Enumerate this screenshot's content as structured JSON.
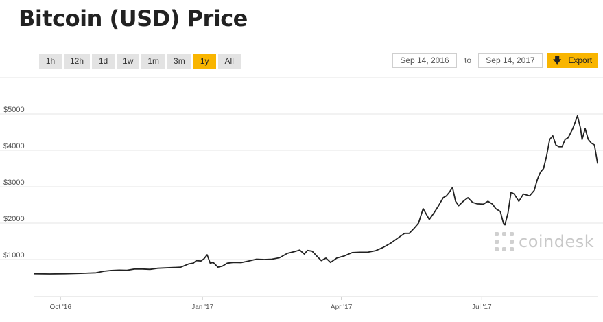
{
  "header": {
    "title": "Bitcoin (USD) Price"
  },
  "range_buttons": [
    {
      "label": "1h",
      "active": false
    },
    {
      "label": "12h",
      "active": false
    },
    {
      "label": "1d",
      "active": false
    },
    {
      "label": "1w",
      "active": false
    },
    {
      "label": "1m",
      "active": false
    },
    {
      "label": "3m",
      "active": false
    },
    {
      "label": "1y",
      "active": true
    },
    {
      "label": "All",
      "active": false
    }
  ],
  "date_range": {
    "from": "Sep 14, 2016",
    "to_label": "to",
    "to": "Sep 14, 2017"
  },
  "export": {
    "label": "Export",
    "icon": "arrow-down-icon"
  },
  "logo": {
    "text": "coindesk",
    "icon": "coindesk-logo-icon"
  },
  "colors": {
    "accent": "#f9b500",
    "line": "#222222",
    "grid": "#e6e6e6",
    "button": "#e3e3e3"
  },
  "chart_data": {
    "type": "line",
    "title": "Bitcoin (USD) Price",
    "xlabel": "",
    "ylabel": "",
    "ylim": [
      0,
      5000
    ],
    "xlim": [
      "2016-09-14",
      "2017-09-14"
    ],
    "y_ticks": [
      {
        "value": 1000,
        "label": "$1000"
      },
      {
        "value": 2000,
        "label": "$2000"
      },
      {
        "value": 3000,
        "label": "$3000"
      },
      {
        "value": 4000,
        "label": "$4000"
      },
      {
        "value": 5000,
        "label": "$5000"
      }
    ],
    "x_ticks": [
      {
        "date": "2016-10-01",
        "label": "Oct '16"
      },
      {
        "date": "2017-01-01",
        "label": "Jan '17"
      },
      {
        "date": "2017-04-01",
        "label": "Apr '17"
      },
      {
        "date": "2017-07-01",
        "label": "Jul '17"
      }
    ],
    "grid": true,
    "legend": "none",
    "series": [
      {
        "values": [
          {
            "x": "2016-09-14",
            "y": 610
          },
          {
            "x": "2016-09-24",
            "y": 604
          },
          {
            "x": "2016-10-04",
            "y": 610
          },
          {
            "x": "2016-10-14",
            "y": 620
          },
          {
            "x": "2016-10-24",
            "y": 635
          },
          {
            "x": "2016-10-29",
            "y": 680
          },
          {
            "x": "2016-11-03",
            "y": 700
          },
          {
            "x": "2016-11-08",
            "y": 710
          },
          {
            "x": "2016-11-13",
            "y": 705
          },
          {
            "x": "2016-11-18",
            "y": 740
          },
          {
            "x": "2016-11-23",
            "y": 740
          },
          {
            "x": "2016-11-28",
            "y": 730
          },
          {
            "x": "2016-12-03",
            "y": 760
          },
          {
            "x": "2016-12-08",
            "y": 770
          },
          {
            "x": "2016-12-13",
            "y": 780
          },
          {
            "x": "2016-12-18",
            "y": 790
          },
          {
            "x": "2016-12-23",
            "y": 880
          },
          {
            "x": "2016-12-26",
            "y": 900
          },
          {
            "x": "2016-12-28",
            "y": 970
          },
          {
            "x": "2016-12-31",
            "y": 960
          },
          {
            "x": "2017-01-02",
            "y": 1020
          },
          {
            "x": "2017-01-04",
            "y": 1130
          },
          {
            "x": "2017-01-06",
            "y": 900
          },
          {
            "x": "2017-01-08",
            "y": 920
          },
          {
            "x": "2017-01-11",
            "y": 790
          },
          {
            "x": "2017-01-14",
            "y": 820
          },
          {
            "x": "2017-01-17",
            "y": 900
          },
          {
            "x": "2017-01-21",
            "y": 920
          },
          {
            "x": "2017-01-26",
            "y": 915
          },
          {
            "x": "2017-01-31",
            "y": 960
          },
          {
            "x": "2017-02-05",
            "y": 1010
          },
          {
            "x": "2017-02-10",
            "y": 1000
          },
          {
            "x": "2017-02-15",
            "y": 1010
          },
          {
            "x": "2017-02-20",
            "y": 1050
          },
          {
            "x": "2017-02-25",
            "y": 1170
          },
          {
            "x": "2017-03-02",
            "y": 1220
          },
          {
            "x": "2017-03-05",
            "y": 1260
          },
          {
            "x": "2017-03-08",
            "y": 1150
          },
          {
            "x": "2017-03-10",
            "y": 1250
          },
          {
            "x": "2017-03-13",
            "y": 1230
          },
          {
            "x": "2017-03-16",
            "y": 1100
          },
          {
            "x": "2017-03-19",
            "y": 970
          },
          {
            "x": "2017-03-22",
            "y": 1040
          },
          {
            "x": "2017-03-25",
            "y": 920
          },
          {
            "x": "2017-03-29",
            "y": 1040
          },
          {
            "x": "2017-04-03",
            "y": 1100
          },
          {
            "x": "2017-04-08",
            "y": 1190
          },
          {
            "x": "2017-04-13",
            "y": 1200
          },
          {
            "x": "2017-04-18",
            "y": 1200
          },
          {
            "x": "2017-04-23",
            "y": 1240
          },
          {
            "x": "2017-04-28",
            "y": 1330
          },
          {
            "x": "2017-05-03",
            "y": 1450
          },
          {
            "x": "2017-05-08",
            "y": 1600
          },
          {
            "x": "2017-05-12",
            "y": 1720
          },
          {
            "x": "2017-05-15",
            "y": 1720
          },
          {
            "x": "2017-05-18",
            "y": 1850
          },
          {
            "x": "2017-05-21",
            "y": 2000
          },
          {
            "x": "2017-05-24",
            "y": 2400
          },
          {
            "x": "2017-05-26",
            "y": 2250
          },
          {
            "x": "2017-05-28",
            "y": 2100
          },
          {
            "x": "2017-05-31",
            "y": 2280
          },
          {
            "x": "2017-06-03",
            "y": 2480
          },
          {
            "x": "2017-06-06",
            "y": 2700
          },
          {
            "x": "2017-06-08",
            "y": 2750
          },
          {
            "x": "2017-06-10",
            "y": 2850
          },
          {
            "x": "2017-06-12",
            "y": 2980
          },
          {
            "x": "2017-06-14",
            "y": 2600
          },
          {
            "x": "2017-06-16",
            "y": 2480
          },
          {
            "x": "2017-06-19",
            "y": 2600
          },
          {
            "x": "2017-06-22",
            "y": 2700
          },
          {
            "x": "2017-06-25",
            "y": 2570
          },
          {
            "x": "2017-06-28",
            "y": 2530
          },
          {
            "x": "2017-07-02",
            "y": 2520
          },
          {
            "x": "2017-07-05",
            "y": 2600
          },
          {
            "x": "2017-07-08",
            "y": 2520
          },
          {
            "x": "2017-07-10",
            "y": 2400
          },
          {
            "x": "2017-07-13",
            "y": 2320
          },
          {
            "x": "2017-07-15",
            "y": 2000
          },
          {
            "x": "2017-07-16",
            "y": 1950
          },
          {
            "x": "2017-07-18",
            "y": 2280
          },
          {
            "x": "2017-07-20",
            "y": 2850
          },
          {
            "x": "2017-07-22",
            "y": 2800
          },
          {
            "x": "2017-07-25",
            "y": 2600
          },
          {
            "x": "2017-07-28",
            "y": 2800
          },
          {
            "x": "2017-08-01",
            "y": 2750
          },
          {
            "x": "2017-08-04",
            "y": 2900
          },
          {
            "x": "2017-08-06",
            "y": 3200
          },
          {
            "x": "2017-08-08",
            "y": 3400
          },
          {
            "x": "2017-08-10",
            "y": 3500
          },
          {
            "x": "2017-08-12",
            "y": 3850
          },
          {
            "x": "2017-08-14",
            "y": 4300
          },
          {
            "x": "2017-08-16",
            "y": 4400
          },
          {
            "x": "2017-08-18",
            "y": 4150
          },
          {
            "x": "2017-08-20",
            "y": 4100
          },
          {
            "x": "2017-08-22",
            "y": 4100
          },
          {
            "x": "2017-08-24",
            "y": 4300
          },
          {
            "x": "2017-08-26",
            "y": 4350
          },
          {
            "x": "2017-08-29",
            "y": 4600
          },
          {
            "x": "2017-09-01",
            "y": 4950
          },
          {
            "x": "2017-09-03",
            "y": 4600
          },
          {
            "x": "2017-09-04",
            "y": 4300
          },
          {
            "x": "2017-09-06",
            "y": 4600
          },
          {
            "x": "2017-09-08",
            "y": 4300
          },
          {
            "x": "2017-09-10",
            "y": 4200
          },
          {
            "x": "2017-09-12",
            "y": 4150
          },
          {
            "x": "2017-09-14",
            "y": 3650
          }
        ]
      }
    ]
  }
}
